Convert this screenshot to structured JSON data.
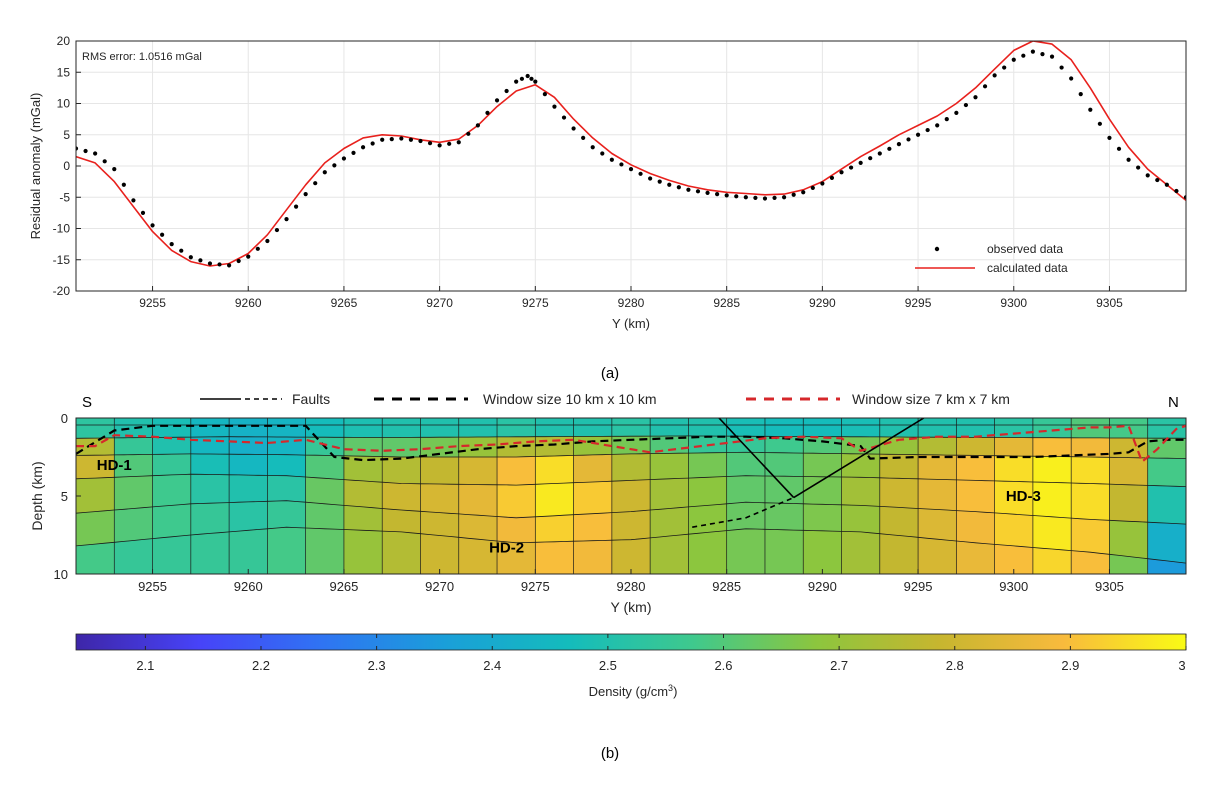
{
  "figure": {
    "panel_a_letter": "(a)",
    "panel_b_letter": "(b)"
  },
  "colors": {
    "observed": "#000000",
    "calculated": "#e8211d",
    "faults": "#000000",
    "window10": "#000000",
    "window7": "#d6282b",
    "grid": "#e6e6e6",
    "axis": "#262626"
  },
  "chart_data": [
    {
      "id": "panel-a",
      "type": "line",
      "title": "",
      "xlabel": "Y (km)",
      "ylabel": "Residual anomaly (mGal)",
      "xlim": [
        9251,
        9309
      ],
      "ylim": [
        -20,
        20
      ],
      "x_ticks": [
        9255,
        9260,
        9265,
        9270,
        9275,
        9280,
        9285,
        9290,
        9295,
        9300,
        9305
      ],
      "y_ticks": [
        -20,
        -15,
        -10,
        -5,
        0,
        5,
        10,
        15,
        20
      ],
      "grid": true,
      "legend_position": "bottom-right",
      "annotation": "RMS error: 1.0516 mGal",
      "series": [
        {
          "name": "observed data",
          "style": "dots",
          "x": [
            9251,
            9252,
            9253,
            9254,
            9255,
            9256,
            9257,
            9258,
            9259,
            9260,
            9261,
            9262,
            9263,
            9264,
            9265,
            9266,
            9267,
            9268,
            9269,
            9270,
            9271,
            9272,
            9273,
            9274,
            9274.6,
            9275,
            9276,
            9277,
            9278,
            9279,
            9280,
            9281,
            9282,
            9283,
            9284,
            9285,
            9286,
            9287,
            9288,
            9289,
            9290,
            9291,
            9292,
            9293,
            9294,
            9295,
            9296,
            9297,
            9298,
            9299,
            9300,
            9301,
            9302,
            9303,
            9304,
            9305,
            9306,
            9307,
            9308,
            9309
          ],
          "y": [
            2.8,
            2.0,
            -0.5,
            -5.5,
            -9.5,
            -12.5,
            -14.6,
            -15.6,
            -15.9,
            -14.5,
            -12.0,
            -8.5,
            -4.5,
            -1.0,
            1.2,
            3.0,
            4.2,
            4.4,
            4.0,
            3.3,
            3.8,
            6.5,
            10.5,
            13.5,
            14.4,
            13.5,
            9.5,
            6.0,
            3.0,
            1.0,
            -0.5,
            -2.0,
            -3.0,
            -3.8,
            -4.3,
            -4.7,
            -5.0,
            -5.2,
            -5.0,
            -4.2,
            -2.8,
            -1.0,
            0.5,
            2.0,
            3.5,
            5.0,
            6.5,
            8.5,
            11.0,
            14.5,
            17.0,
            18.3,
            17.5,
            14.0,
            9.0,
            4.5,
            1.0,
            -1.5,
            -3.0,
            -5.0
          ]
        },
        {
          "name": "calculated data",
          "style": "line",
          "x": [
            9251,
            9252,
            9253,
            9254,
            9255,
            9256,
            9257,
            9258,
            9259,
            9260,
            9261,
            9262,
            9263,
            9264,
            9265,
            9266,
            9267,
            9268,
            9269,
            9270,
            9271,
            9272,
            9273,
            9274,
            9275,
            9276,
            9277,
            9278,
            9279,
            9280,
            9281,
            9282,
            9283,
            9284,
            9285,
            9286,
            9287,
            9288,
            9289,
            9290,
            9291,
            9292,
            9293,
            9294,
            9295,
            9296,
            9297,
            9298,
            9299,
            9300,
            9301,
            9302,
            9303,
            9304,
            9305,
            9306,
            9307,
            9308,
            9309
          ],
          "y": [
            1.5,
            0.5,
            -2.5,
            -6.5,
            -10.5,
            -13.5,
            -15.3,
            -16.0,
            -15.6,
            -14.0,
            -11.0,
            -7.0,
            -3.0,
            0.5,
            2.8,
            4.5,
            5.0,
            4.8,
            4.2,
            3.8,
            4.3,
            6.5,
            9.5,
            12.0,
            13.0,
            11.0,
            7.5,
            4.5,
            2.0,
            0.2,
            -1.2,
            -2.3,
            -3.2,
            -3.8,
            -4.2,
            -4.4,
            -4.6,
            -4.5,
            -3.8,
            -2.5,
            -0.5,
            1.5,
            3.2,
            5.0,
            6.5,
            8.0,
            10.0,
            12.5,
            15.5,
            18.5,
            20.0,
            19.5,
            17.0,
            12.5,
            7.5,
            3.0,
            -0.5,
            -3.0,
            -5.5
          ]
        }
      ]
    },
    {
      "id": "panel-b",
      "type": "heatmap",
      "title": "",
      "xlabel": "Y (km)",
      "ylabel": "Depth (km)",
      "xlim": [
        9251,
        9309
      ],
      "ylim": [
        10,
        0
      ],
      "x_ticks": [
        9255,
        9260,
        9265,
        9270,
        9275,
        9280,
        9285,
        9290,
        9295,
        9300,
        9305
      ],
      "y_ticks": [
        0,
        5,
        10
      ],
      "side_labels": {
        "left": "S",
        "right": "N"
      },
      "legend_position": "top",
      "legend_entries": [
        "Faults",
        "Window size 10 km x 10 km",
        "Window size 7 km x 7 km"
      ],
      "labels": [
        {
          "text": "HD-1",
          "x": 9253,
          "depth": 3.0
        },
        {
          "text": "HD-2",
          "x": 9273.5,
          "depth": 8.3
        },
        {
          "text": "HD-3",
          "x": 9300.5,
          "depth": 5.0
        }
      ],
      "column_edges": [
        9251,
        9253,
        9255,
        9257,
        9259,
        9261,
        9263,
        9265,
        9267,
        9269,
        9271,
        9273,
        9275,
        9277,
        9279,
        9281,
        9283,
        9285,
        9287,
        9289,
        9291,
        9293,
        9295,
        9297,
        9299,
        9301,
        9303,
        9305,
        9307,
        9309
      ],
      "layer_density": [
        [
          2.53,
          2.5,
          2.48,
          2.45,
          2.43,
          2.44,
          2.47,
          2.49,
          2.5,
          2.5,
          2.5,
          2.52,
          2.5,
          2.5,
          2.52,
          2.5,
          2.5,
          2.48,
          2.47,
          2.47,
          2.48,
          2.5,
          2.5,
          2.5,
          2.52,
          2.55,
          2.6,
          2.58,
          2.52
        ],
        [
          2.75,
          2.55,
          2.5,
          2.45,
          2.42,
          2.44,
          2.55,
          2.62,
          2.62,
          2.65,
          2.7,
          2.75,
          2.75,
          2.7,
          2.65,
          2.6,
          2.55,
          2.55,
          2.57,
          2.6,
          2.65,
          2.7,
          2.75,
          2.8,
          2.85,
          2.9,
          2.88,
          2.8,
          2.62
        ],
        [
          2.8,
          2.6,
          2.55,
          2.48,
          2.45,
          2.47,
          2.6,
          2.72,
          2.75,
          2.78,
          2.82,
          2.9,
          2.95,
          2.85,
          2.75,
          2.7,
          2.65,
          2.6,
          2.6,
          2.65,
          2.7,
          2.78,
          2.85,
          2.9,
          2.95,
          2.98,
          2.95,
          2.82,
          2.58
        ],
        [
          2.72,
          2.62,
          2.57,
          2.52,
          2.5,
          2.52,
          2.63,
          2.75,
          2.8,
          2.82,
          2.85,
          2.92,
          2.97,
          2.92,
          2.8,
          2.72,
          2.68,
          2.62,
          2.62,
          2.65,
          2.72,
          2.8,
          2.85,
          2.9,
          2.95,
          2.98,
          2.95,
          2.78,
          2.5
        ],
        [
          2.65,
          2.6,
          2.57,
          2.55,
          2.52,
          2.55,
          2.62,
          2.72,
          2.78,
          2.8,
          2.83,
          2.88,
          2.93,
          2.9,
          2.8,
          2.72,
          2.68,
          2.63,
          2.63,
          2.66,
          2.7,
          2.78,
          2.83,
          2.88,
          2.93,
          2.97,
          2.92,
          2.7,
          2.42
        ],
        [
          2.58,
          2.55,
          2.55,
          2.55,
          2.55,
          2.58,
          2.62,
          2.7,
          2.75,
          2.8,
          2.82,
          2.85,
          2.9,
          2.88,
          2.8,
          2.72,
          2.68,
          2.65,
          2.65,
          2.68,
          2.72,
          2.78,
          2.82,
          2.86,
          2.9,
          2.94,
          2.9,
          2.65,
          2.35
        ]
      ],
      "layer_boundaries": [
        {
          "x": [
            9251,
            9259,
            9267,
            9275,
            9283,
            9291,
            9299,
            9309
          ],
          "depth": [
            0.45,
            0.45,
            0.45,
            0.45,
            0.45,
            0.45,
            0.45,
            0.45
          ]
        },
        {
          "x": [
            9251,
            9259,
            9267,
            9275,
            9283,
            9291,
            9299,
            9309
          ],
          "depth": [
            1.3,
            1.2,
            1.25,
            1.2,
            1.15,
            1.2,
            1.25,
            1.3
          ]
        },
        {
          "x": [
            9251,
            9257,
            9262,
            9268,
            9274,
            9280,
            9286,
            9292,
            9298,
            9304,
            9309
          ],
          "depth": [
            2.4,
            2.3,
            2.35,
            2.5,
            2.5,
            2.3,
            2.2,
            2.3,
            2.4,
            2.5,
            2.6
          ]
        },
        {
          "x": [
            9251,
            9257,
            9262,
            9268,
            9274,
            9280,
            9286,
            9292,
            9298,
            9304,
            9309
          ],
          "depth": [
            3.9,
            3.6,
            3.7,
            4.2,
            4.3,
            4.0,
            3.7,
            3.8,
            4.0,
            4.2,
            4.4
          ]
        },
        {
          "x": [
            9251,
            9257,
            9262,
            9268,
            9274,
            9280,
            9286,
            9292,
            9298,
            9304,
            9309
          ],
          "depth": [
            6.1,
            5.5,
            5.3,
            5.9,
            6.4,
            6.0,
            5.4,
            5.6,
            6.0,
            6.5,
            6.8
          ]
        },
        {
          "x": [
            9251,
            9257,
            9262,
            9268,
            9274,
            9280,
            9286,
            9292,
            9298,
            9304,
            9309
          ],
          "depth": [
            8.2,
            7.5,
            7.0,
            7.3,
            8.0,
            7.8,
            7.1,
            7.3,
            8.0,
            8.6,
            9.3
          ]
        }
      ],
      "faults": [
        {
          "style": "solid",
          "x": [
            9284.6,
            9288.5
          ],
          "depth": [
            0,
            5.1
          ]
        },
        {
          "style": "solid",
          "x": [
            9288.5,
            9295.3
          ],
          "depth": [
            5.1,
            0
          ]
        },
        {
          "style": "dashed",
          "x": [
            9283.2,
            9286,
            9288.5
          ],
          "depth": [
            7.0,
            6.4,
            5.1
          ]
        }
      ],
      "window_10km": {
        "x": [
          9251,
          9253,
          9255,
          9257,
          9259,
          9261,
          9263,
          9264.5,
          9266,
          9268,
          9270,
          9272,
          9274,
          9276,
          9278,
          9280,
          9282,
          9284,
          9286,
          9288,
          9290,
          9292,
          9292.5,
          9295,
          9297,
          9299,
          9301,
          9303,
          9305,
          9306,
          9307,
          9308,
          9309
        ],
        "depth": [
          2.3,
          0.8,
          0.5,
          0.5,
          0.5,
          0.5,
          0.5,
          2.5,
          2.7,
          2.6,
          2.3,
          2.0,
          1.8,
          1.7,
          1.5,
          1.4,
          1.3,
          1.2,
          1.2,
          1.3,
          1.5,
          1.8,
          2.6,
          2.5,
          2.5,
          2.5,
          2.5,
          2.4,
          2.3,
          2.2,
          1.5,
          1.4,
          1.4
        ]
      },
      "window_7km": {
        "x": [
          9251,
          9252,
          9253,
          9255,
          9257,
          9259,
          9261,
          9263,
          9265,
          9267,
          9269,
          9271,
          9273,
          9275,
          9277,
          9279,
          9281,
          9283,
          9285,
          9287,
          9289,
          9291,
          9292,
          9294,
          9296,
          9298,
          9300,
          9302,
          9304,
          9305,
          9306,
          9306.7,
          9307.5,
          9308.5,
          9309
        ],
        "depth": [
          1.8,
          1.8,
          1.1,
          1.2,
          1.4,
          1.5,
          1.6,
          1.4,
          2.0,
          2.1,
          2.0,
          1.8,
          1.7,
          1.5,
          1.4,
          1.8,
          2.2,
          1.9,
          1.6,
          1.3,
          1.2,
          1.3,
          2.1,
          1.4,
          1.2,
          1.2,
          1.0,
          0.8,
          0.6,
          0.6,
          0.5,
          2.8,
          2.0,
          0.7,
          0.5
        ]
      },
      "colorbar": {
        "label": "Density (g/cm",
        "label_sup": "3",
        "label_close": ")",
        "range": [
          2.04,
          3.0
        ],
        "ticks": [
          2.1,
          2.2,
          2.3,
          2.4,
          2.5,
          2.6,
          2.7,
          2.8,
          2.9,
          3
        ],
        "colormap": [
          "#3e26a8",
          "#4743f8",
          "#2f74f3",
          "#1a9fd9",
          "#14bcbc",
          "#3fc98d",
          "#8cc63e",
          "#c7b62f",
          "#f8ba3d",
          "#f9fb15"
        ]
      }
    }
  ]
}
